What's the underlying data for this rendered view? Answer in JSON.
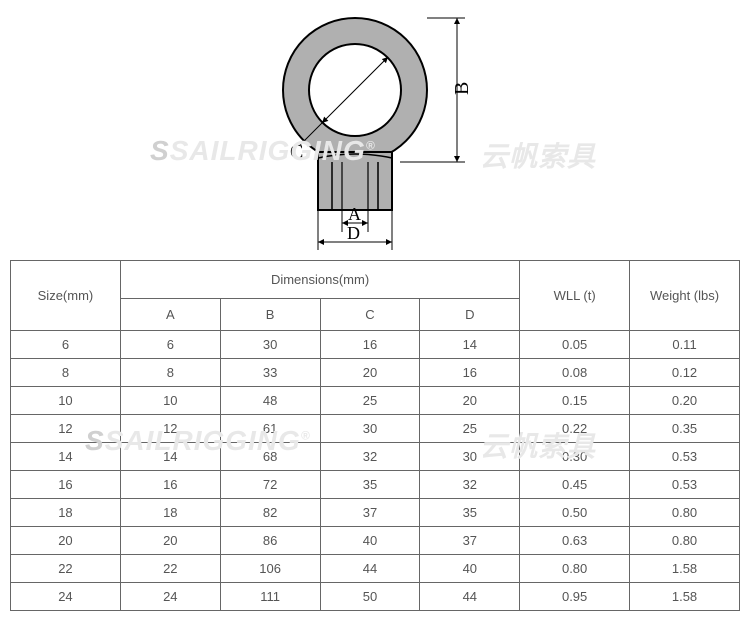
{
  "diagram": {
    "labels": {
      "A": "A",
      "B": "B",
      "C": "C",
      "D": "D"
    },
    "fill_color": "#b0b0b0",
    "stroke_color": "#000000",
    "hole_fill": "#ffffff",
    "stroke_width": 2
  },
  "watermark": {
    "text_left": "SAILRIGGING",
    "text_right": "云帆索具",
    "reg": "®"
  },
  "table": {
    "headers": {
      "size": "Size(mm)",
      "dimensions": "Dimensions(mm)",
      "A": "A",
      "B": "B",
      "C": "C",
      "D": "D",
      "wll": "WLL (t)",
      "weight": "Weight (lbs)"
    },
    "rows": [
      {
        "size": "6",
        "A": "6",
        "B": "30",
        "C": "16",
        "D": "14",
        "wll": "0.05",
        "weight": "0.11"
      },
      {
        "size": "8",
        "A": "8",
        "B": "33",
        "C": "20",
        "D": "16",
        "wll": "0.08",
        "weight": "0.12"
      },
      {
        "size": "10",
        "A": "10",
        "B": "48",
        "C": "25",
        "D": "20",
        "wll": "0.15",
        "weight": "0.20"
      },
      {
        "size": "12",
        "A": "12",
        "B": "61",
        "C": "30",
        "D": "25",
        "wll": "0.22",
        "weight": "0.35"
      },
      {
        "size": "14",
        "A": "14",
        "B": "68",
        "C": "32",
        "D": "30",
        "wll": "0.30",
        "weight": "0.53"
      },
      {
        "size": "16",
        "A": "16",
        "B": "72",
        "C": "35",
        "D": "32",
        "wll": "0.45",
        "weight": "0.53"
      },
      {
        "size": "18",
        "A": "18",
        "B": "82",
        "C": "37",
        "D": "35",
        "wll": "0.50",
        "weight": "0.80"
      },
      {
        "size": "20",
        "A": "20",
        "B": "86",
        "C": "40",
        "D": "37",
        "wll": "0.63",
        "weight": "0.80"
      },
      {
        "size": "22",
        "A": "22",
        "B": "106",
        "C": "44",
        "D": "40",
        "wll": "0.80",
        "weight": "1.58"
      },
      {
        "size": "24",
        "A": "24",
        "B": "111",
        "C": "50",
        "D": "44",
        "wll": "0.95",
        "weight": "1.58"
      }
    ],
    "col_widths": {
      "size": 110,
      "A": 100,
      "B": 100,
      "C": 100,
      "D": 100,
      "wll": 110,
      "weight": 110
    }
  }
}
